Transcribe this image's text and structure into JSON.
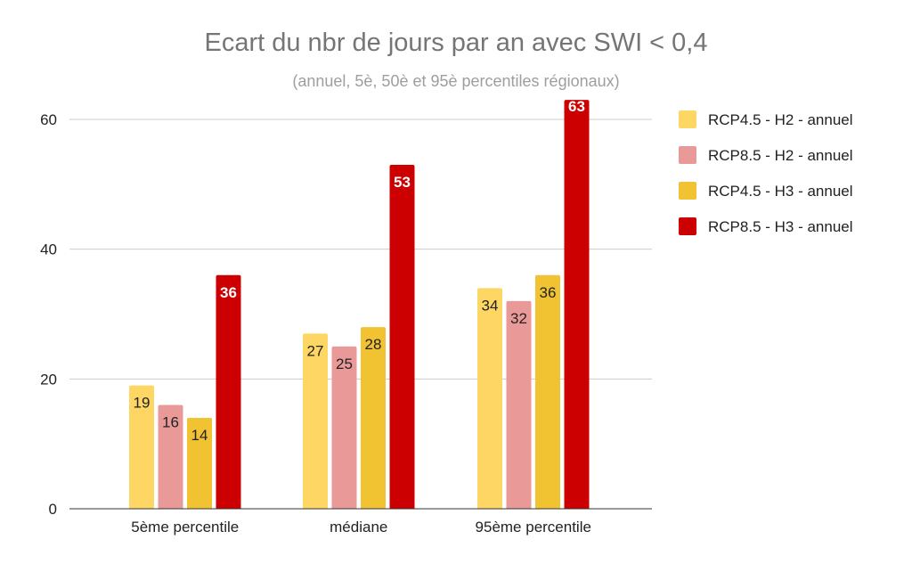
{
  "chart_data": {
    "type": "bar",
    "title": "Ecart du nbr de jours par an avec SWI < 0,4",
    "subtitle": "(annuel,  5è, 50è et 95è percentiles régionaux)",
    "categories": [
      "5ème percentile",
      "médiane",
      "95ème percentile"
    ],
    "series": [
      {
        "name": "RCP4.5 - H2 - annuel",
        "color": "#fdd663",
        "label_color": "#222222",
        "values": [
          19,
          27,
          34
        ]
      },
      {
        "name": "RCP8.5 - H2 - annuel",
        "color": "#ea9999",
        "label_color": "#222222",
        "values": [
          16,
          25,
          32
        ]
      },
      {
        "name": "RCP4.5 - H3 - annuel",
        "color": "#f1c232",
        "label_color": "#222222",
        "values": [
          14,
          28,
          36
        ]
      },
      {
        "name": "RCP8.5 - H3 - annuel",
        "color": "#cc0000",
        "label_color": "#ffffff",
        "values": [
          36,
          53,
          63
        ]
      }
    ],
    "ylim": [
      0,
      60
    ],
    "yticks": [
      "0",
      "20",
      "40",
      "60"
    ],
    "grid": true,
    "legend": "right"
  }
}
